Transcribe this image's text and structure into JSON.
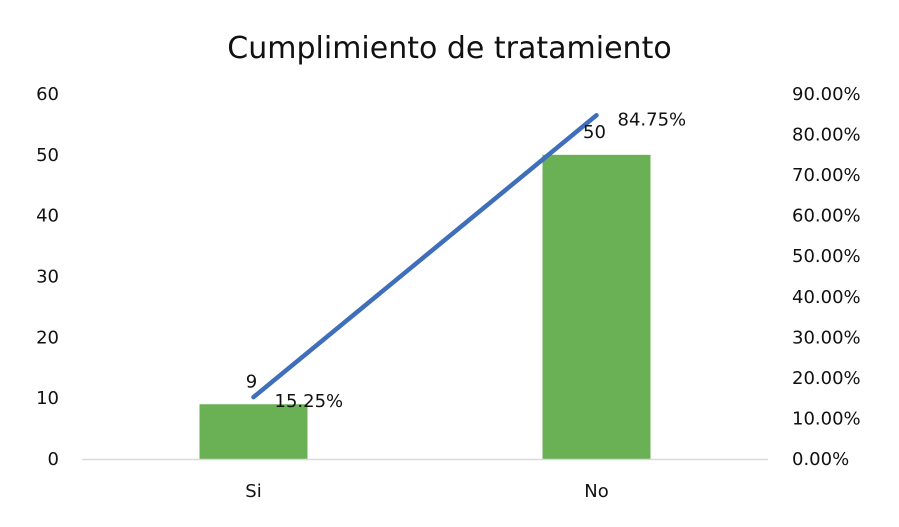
{
  "chart_data": {
    "type": "bar",
    "title": "Cumplimiento de tratamiento",
    "categories": [
      "Si",
      "No"
    ],
    "series": [
      {
        "type": "bar",
        "axis": "left",
        "values": [
          9,
          50
        ],
        "value_labels": [
          "9",
          "50"
        ],
        "color": "#6AB155"
      },
      {
        "type": "line",
        "axis": "right",
        "values": [
          15.25,
          84.75
        ],
        "value_labels": [
          "15.25%",
          "84.75%"
        ],
        "color": "#3F6FBA"
      }
    ],
    "y_left": {
      "range": [
        0,
        60
      ],
      "ticks": [
        "0",
        "10",
        "20",
        "30",
        "40",
        "50",
        "60"
      ]
    },
    "y_right": {
      "range": [
        0,
        90
      ],
      "ticks": [
        "0.00%",
        "10.00%",
        "20.00%",
        "30.00%",
        "40.00%",
        "50.00%",
        "60.00%",
        "70.00%",
        "80.00%",
        "90.00%"
      ]
    },
    "grid": false,
    "legend": "none"
  },
  "colors": {
    "bar": "#6AB155",
    "line": "#3F6FBA",
    "axis": "#D9D9D9",
    "text": "#111111"
  }
}
